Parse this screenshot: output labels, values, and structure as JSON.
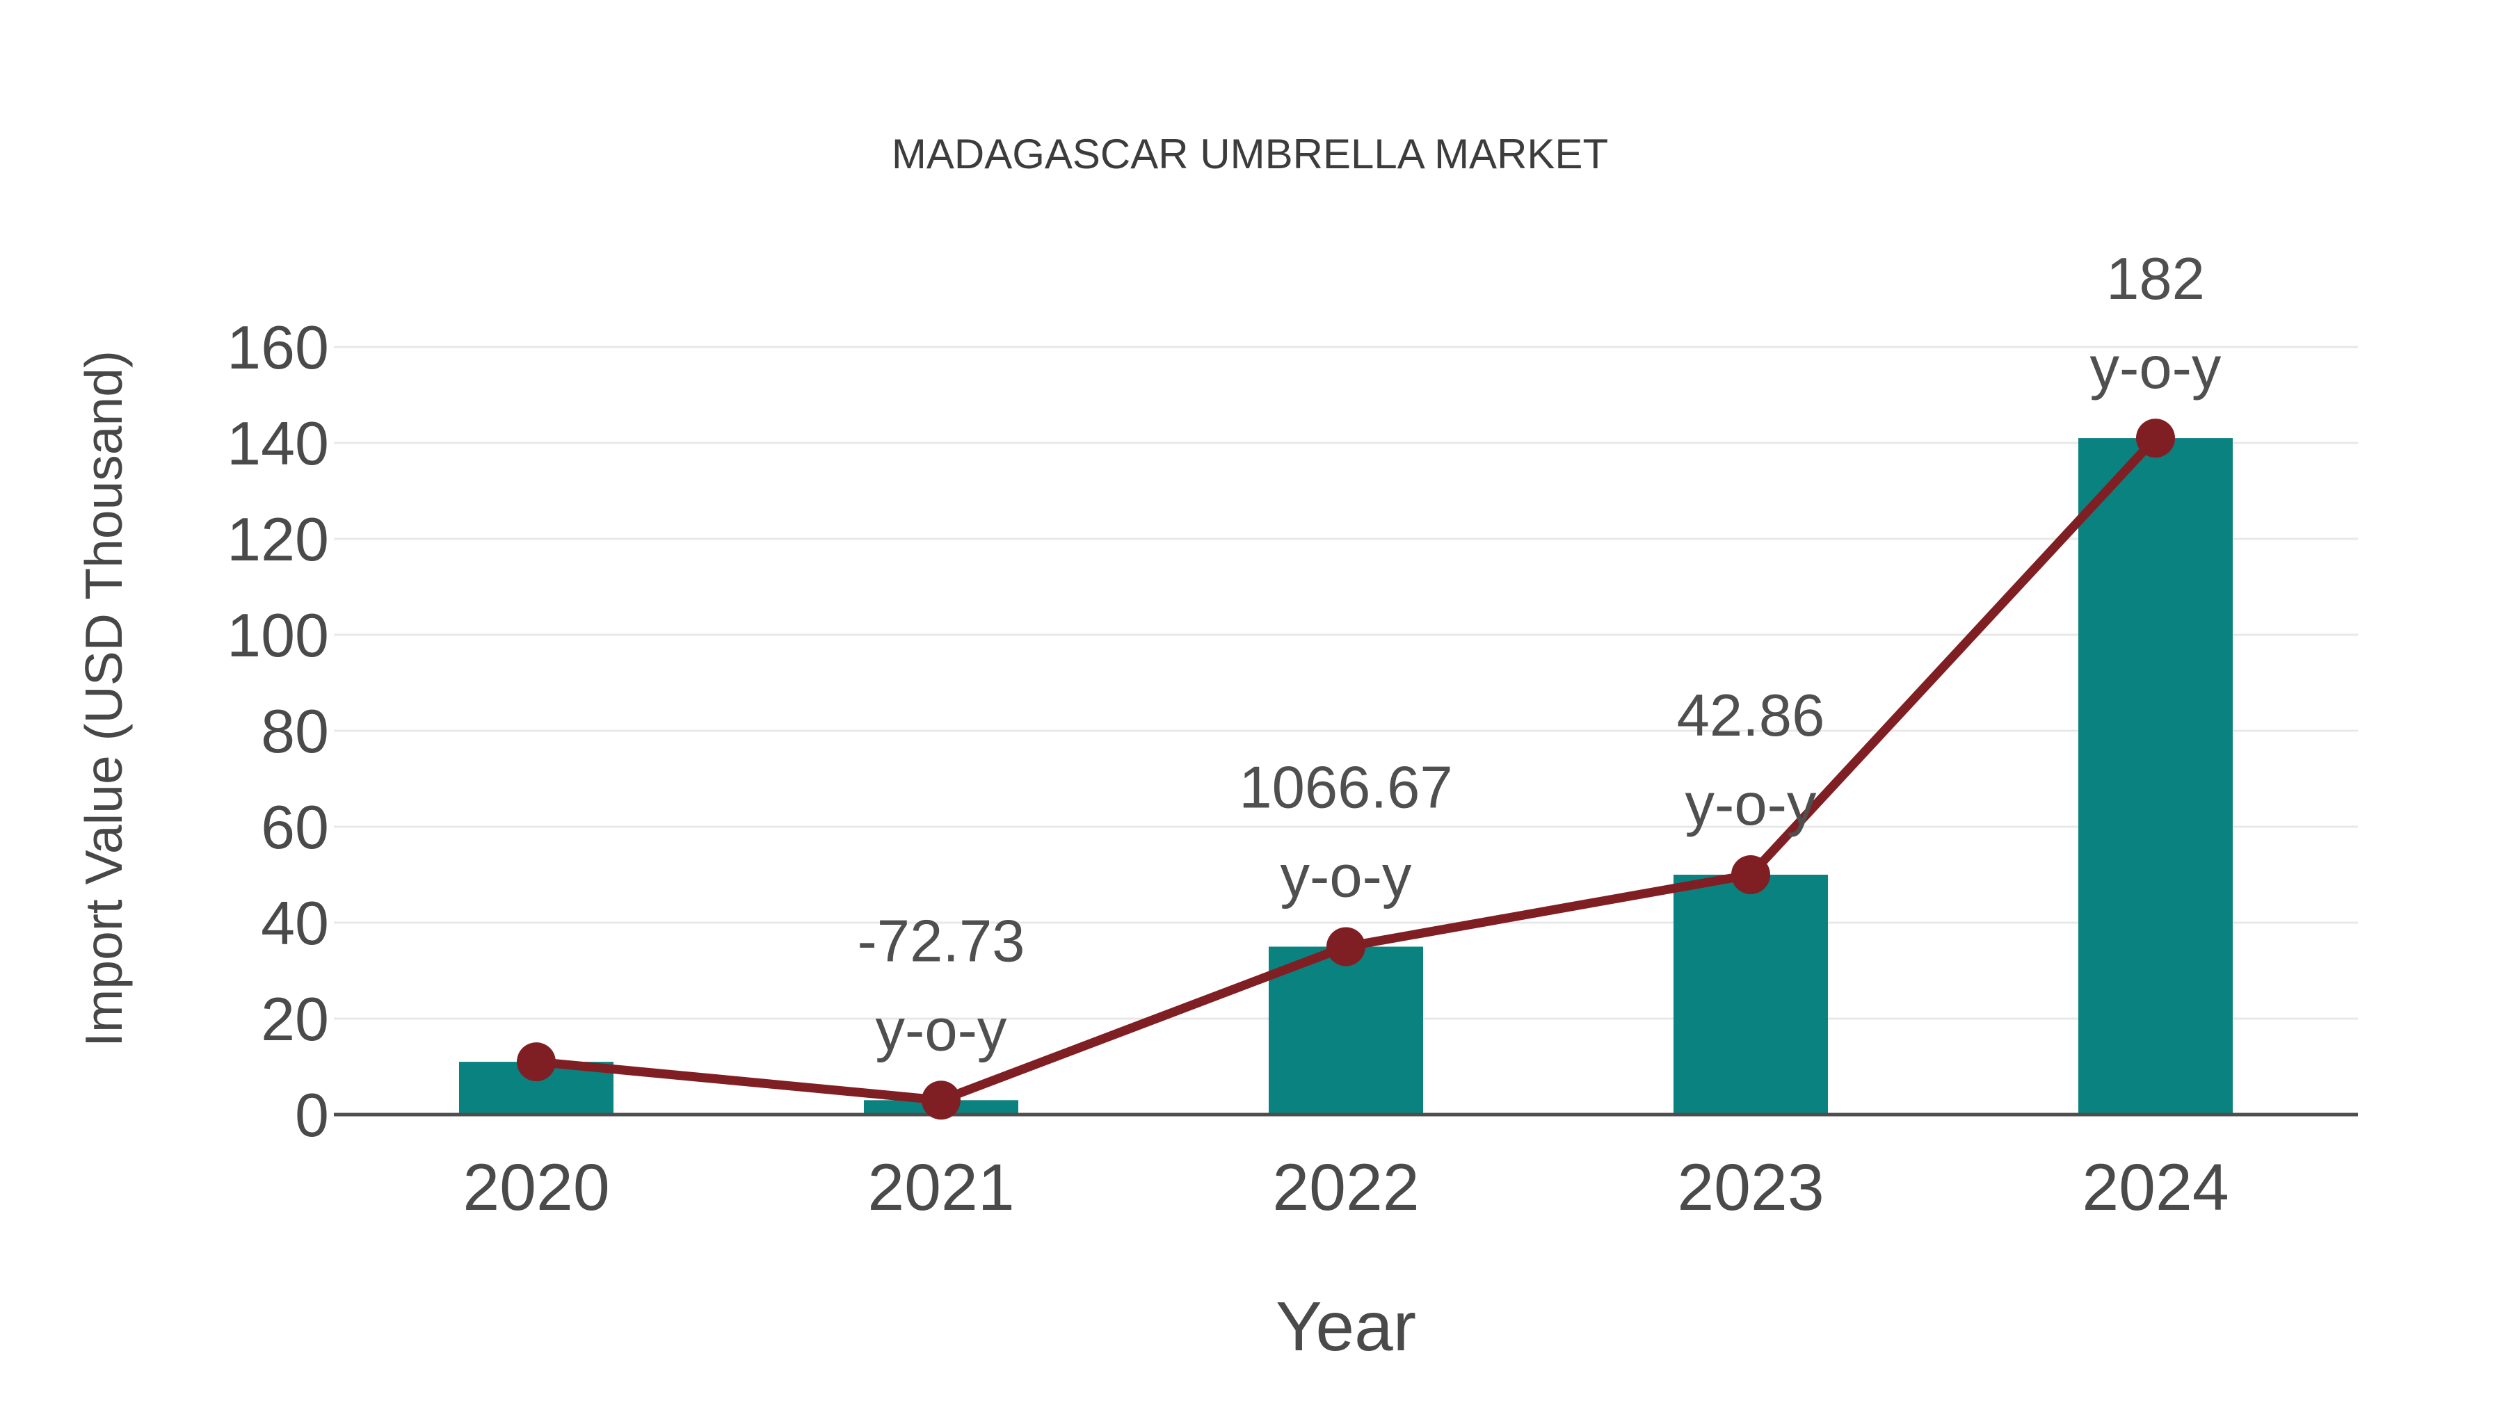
{
  "chart_data": {
    "type": "bar+line",
    "title": "MADAGASCAR UMBRELLA MARKET",
    "xlabel": "Year",
    "ylabel": "Import Value (USD Thousand)",
    "categories": [
      "2020",
      "2021",
      "2022",
      "2023",
      "2024"
    ],
    "series": [
      {
        "name": "import-value-bars",
        "type": "bar",
        "values": [
          11,
          3,
          35,
          50,
          141
        ],
        "color": "#0A8280"
      },
      {
        "name": "import-value-line",
        "type": "line",
        "values": [
          11,
          3,
          35,
          50,
          141
        ],
        "color": "#801F23"
      }
    ],
    "annotations": [
      {
        "category": "2021",
        "line1": "-72.73",
        "line2": "y-o-y"
      },
      {
        "category": "2022",
        "line1": "1066.67",
        "line2": "y-o-y"
      },
      {
        "category": "2023",
        "line1": "42.86",
        "line2": "y-o-y"
      },
      {
        "category": "2024",
        "line1": "182",
        "line2": "y-o-y"
      }
    ],
    "yticks": [
      0,
      20,
      40,
      60,
      80,
      100,
      120,
      140,
      160
    ],
    "ylim": [
      0,
      160
    ],
    "grid": true,
    "legend_position": "none",
    "colors": {
      "bar": "#0A8280",
      "line": "#801F23",
      "marker": "#801F23",
      "grid": "#e8e8e8",
      "axis_line": "#4d4d4d",
      "text": "#4a4a4a",
      "background": "#ffffff"
    }
  }
}
